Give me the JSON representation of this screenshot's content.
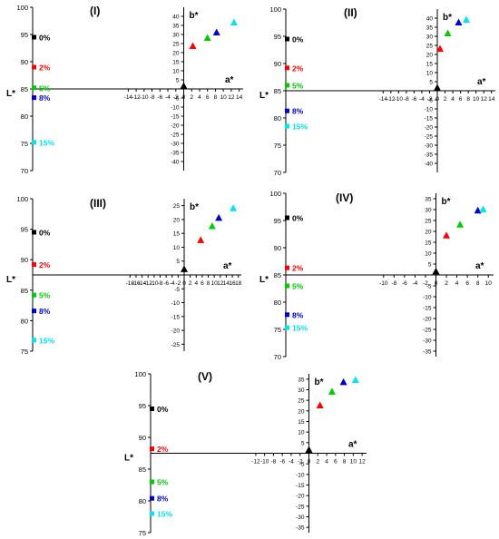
{
  "chart_data": [
    {
      "type": "scatter",
      "panel_label": "(I)",
      "lstar_axis": {
        "label": "L*",
        "ylim": [
          70,
          100
        ],
        "ticks": [
          70,
          75,
          80,
          85,
          90,
          95,
          100
        ]
      },
      "ab_axis": {
        "xlabel": "a*",
        "ylabel": "b*",
        "xlim": [
          -15,
          15
        ],
        "ylim": [
          -45,
          45
        ],
        "xticks": [
          -14,
          -12,
          -10,
          -8,
          -6,
          -4,
          -2,
          0,
          2,
          4,
          6,
          8,
          10,
          12,
          14
        ],
        "yticks": [
          -40,
          -35,
          -30,
          -25,
          -20,
          -15,
          -10,
          -5,
          0,
          5,
          10,
          15,
          20,
          25,
          30,
          35,
          40
        ]
      },
      "series": [
        {
          "name": "0%",
          "color": "#000000",
          "L": 94.5,
          "a": 0.0,
          "b": 1.5
        },
        {
          "name": "2%",
          "color": "#ff0000",
          "L": 89.0,
          "a": 2.3,
          "b": 23.5
        },
        {
          "name": "5%",
          "color": "#00cc00",
          "L": 85.2,
          "a": 6.0,
          "b": 28.0
        },
        {
          "name": "8%",
          "color": "#0000cc",
          "L": 83.4,
          "a": 8.3,
          "b": 31.0
        },
        {
          "name": "15%",
          "color": "#00e5ee",
          "L": 75.2,
          "a": 12.7,
          "b": 36.5
        }
      ]
    },
    {
      "type": "scatter",
      "panel_label": "(II)",
      "lstar_axis": {
        "label": "L*",
        "ylim": [
          70,
          100
        ],
        "ticks": [
          70,
          75,
          80,
          85,
          90,
          95,
          100
        ]
      },
      "ab_axis": {
        "xlabel": "a*",
        "ylabel": "b*",
        "xlim": [
          -15,
          15
        ],
        "ylim": [
          -45,
          45
        ],
        "xticks": [
          -14,
          -12,
          -10,
          -8,
          -6,
          -4,
          -2,
          0,
          2,
          4,
          6,
          8,
          10,
          12,
          14
        ],
        "yticks": [
          -40,
          -35,
          -30,
          -25,
          -20,
          -15,
          -10,
          -5,
          0,
          5,
          10,
          15,
          20,
          25,
          30,
          35,
          40
        ]
      },
      "series": [
        {
          "name": "0%",
          "color": "#000000",
          "L": 94.5,
          "a": 0.0,
          "b": 1.5
        },
        {
          "name": "2%",
          "color": "#ff0000",
          "L": 89.2,
          "a": 0.7,
          "b": 23.0
        },
        {
          "name": "5%",
          "color": "#00cc00",
          "L": 86.0,
          "a": 2.7,
          "b": 31.5
        },
        {
          "name": "8%",
          "color": "#0000cc",
          "L": 81.3,
          "a": 5.5,
          "b": 37.5
        },
        {
          "name": "15%",
          "color": "#00e5ee",
          "L": 78.5,
          "a": 7.5,
          "b": 39.0
        }
      ]
    },
    {
      "type": "scatter",
      "panel_label": "(III)",
      "lstar_axis": {
        "label": "L*",
        "ylim": [
          75,
          100
        ],
        "ticks": [
          75,
          80,
          85,
          90,
          95,
          100
        ]
      },
      "ab_axis": {
        "xlabel": "a*",
        "ylabel": "b*",
        "xlim": [
          -19,
          19
        ],
        "ylim": [
          -27.5,
          27.5
        ],
        "xticks": [
          -18,
          -16,
          -14,
          -12,
          -10,
          -8,
          -6,
          -4,
          -2,
          0,
          2,
          4,
          6,
          8,
          10,
          12,
          14,
          16,
          18
        ],
        "yticks": [
          -25,
          -20,
          -15,
          -10,
          -5,
          0,
          5,
          10,
          15,
          20,
          25
        ]
      },
      "series": [
        {
          "name": "0%",
          "color": "#000000",
          "L": 94.5,
          "a": 0.0,
          "b": 2.0
        },
        {
          "name": "2%",
          "color": "#ff0000",
          "L": 89.2,
          "a": 5.5,
          "b": 12.5
        },
        {
          "name": "5%",
          "color": "#00cc00",
          "L": 84.2,
          "a": 9.3,
          "b": 17.5
        },
        {
          "name": "8%",
          "color": "#0000cc",
          "L": 81.6,
          "a": 11.5,
          "b": 20.5
        },
        {
          "name": "15%",
          "color": "#00e5ee",
          "L": 76.8,
          "a": 16.3,
          "b": 24.0
        }
      ]
    },
    {
      "type": "scatter",
      "panel_label": "(IV)",
      "lstar_axis": {
        "label": "L*",
        "ylim": [
          70,
          100
        ],
        "ticks": [
          70,
          75,
          80,
          85,
          90,
          95,
          100
        ]
      },
      "ab_axis": {
        "xlabel": "a*",
        "ylabel": "b*",
        "xlim": [
          -11,
          11
        ],
        "ylim": [
          -37.5,
          37.5
        ],
        "xticks": [
          -10,
          -8,
          -6,
          -4,
          -2,
          0,
          2,
          4,
          6,
          8,
          10
        ],
        "yticks": [
          -35,
          -30,
          -25,
          -20,
          -15,
          -10,
          -5,
          0,
          5,
          10,
          15,
          20,
          25,
          30,
          35
        ]
      },
      "series": [
        {
          "name": "0%",
          "color": "#000000",
          "L": 95.5,
          "a": 0.0,
          "b": 1.5
        },
        {
          "name": "2%",
          "color": "#ff0000",
          "L": 86.3,
          "a": 2.0,
          "b": 18.0
        },
        {
          "name": "5%",
          "color": "#00cc00",
          "L": 83.0,
          "a": 4.6,
          "b": 23.0
        },
        {
          "name": "8%",
          "color": "#0000cc",
          "L": 77.7,
          "a": 8.0,
          "b": 29.5
        },
        {
          "name": "15%",
          "color": "#00e5ee",
          "L": 75.3,
          "a": 9.0,
          "b": 30.0
        }
      ]
    },
    {
      "type": "scatter",
      "panel_label": "(V)",
      "lstar_axis": {
        "label": "L*",
        "ylim": [
          75,
          100
        ],
        "ticks": [
          75,
          80,
          85,
          90,
          95,
          100
        ]
      },
      "ab_axis": {
        "xlabel": "a*",
        "ylabel": "b*",
        "xlim": [
          -13,
          13
        ],
        "ylim": [
          -37.5,
          37.5
        ],
        "xticks": [
          -12,
          -10,
          -8,
          -6,
          -4,
          -2,
          0,
          2,
          4,
          6,
          8,
          10,
          12
        ],
        "yticks": [
          -35,
          -30,
          -25,
          -20,
          -15,
          -10,
          -5,
          0,
          5,
          10,
          15,
          20,
          25,
          30,
          35
        ]
      },
      "series": [
        {
          "name": "0%",
          "color": "#000000",
          "L": 94.5,
          "a": 0.0,
          "b": 1.5
        },
        {
          "name": "2%",
          "color": "#ff0000",
          "L": 88.2,
          "a": 2.5,
          "b": 22.5
        },
        {
          "name": "5%",
          "color": "#00cc00",
          "L": 83.0,
          "a": 5.2,
          "b": 29.0
        },
        {
          "name": "8%",
          "color": "#0000cc",
          "L": 80.4,
          "a": 7.8,
          "b": 33.5
        },
        {
          "name": "15%",
          "color": "#00e5ee",
          "L": 78.0,
          "a": 10.5,
          "b": 34.5
        }
      ]
    }
  ]
}
